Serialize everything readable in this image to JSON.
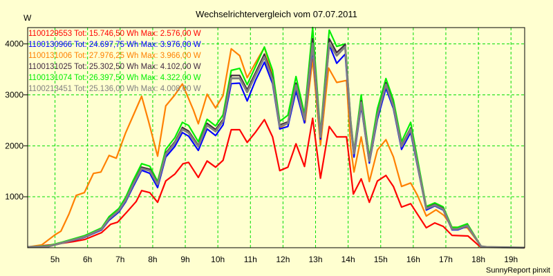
{
  "chart_data": {
    "type": "line",
    "title": "Wechselrichtervergleich vom 07.07.2011",
    "ylabel": "W",
    "xlabel": "",
    "xlim": [
      4.16,
      19.42
    ],
    "ylim": [
      0,
      4320
    ],
    "xticks": [
      5,
      6,
      7,
      8,
      9,
      10,
      11,
      12,
      13,
      14,
      15,
      16,
      17,
      18,
      19
    ],
    "xtick_labels": [
      "5h",
      "6h",
      "7h",
      "8h",
      "9h",
      "10h",
      "11h",
      "12h",
      "13h",
      "14h",
      "15h",
      "16h",
      "17h",
      "18h",
      "19h"
    ],
    "yticks": [
      1000,
      2000,
      3000,
      4000
    ],
    "ytick_labels": [
      "1000",
      "2000",
      "3000",
      "4000"
    ],
    "grid": true,
    "legend_position": "top-left",
    "footer": "SunnyReport pinxit",
    "series": [
      {
        "name": "1100129553",
        "legend": "1100129553 Tot: 15.746,50 Wh Max: 2.576,00 W",
        "color": "#ff0000",
        "x": [
          4.16,
          4.86,
          5.58,
          5.92,
          6.43,
          6.71,
          6.92,
          7.19,
          7.49,
          7.66,
          7.91,
          8.15,
          8.4,
          8.68,
          8.93,
          9.1,
          9.4,
          9.67,
          9.93,
          10.16,
          10.41,
          10.67,
          10.9,
          11.16,
          11.43,
          11.68,
          11.9,
          12.15,
          12.4,
          12.66,
          12.91,
          13.15,
          13.42,
          13.65,
          13.95,
          14.16,
          14.4,
          14.65,
          14.9,
          15.16,
          15.39,
          15.64,
          15.92,
          16.4,
          16.66,
          16.92,
          17.19,
          17.68,
          18.04,
          18.21,
          19.42
        ],
        "values": [
          14,
          54,
          122,
          162,
          297,
          459,
          500,
          689,
          905,
          1121,
          1081,
          891,
          1310,
          1446,
          1648,
          1675,
          1378,
          1702,
          1581,
          1716,
          2316,
          2316,
          2067,
          2270,
          2513,
          2175,
          1513,
          1581,
          2040,
          1594,
          2540,
          1364,
          2378,
          2175,
          2175,
          1054,
          1351,
          891,
          1310,
          1418,
          1202,
          797,
          864,
          392,
          486,
          419,
          243,
          230,
          27,
          14,
          0
        ]
      },
      {
        "name": "1100131006",
        "legend": "1100131006 Tot: 27.976,25 Wh Max: 3.966,00 W",
        "color": "#ff8000",
        "x": [
          4.16,
          4.59,
          5.01,
          5.18,
          5.43,
          5.65,
          5.9,
          6.18,
          6.41,
          6.66,
          6.88,
          7.17,
          7.4,
          7.66,
          7.87,
          8.15,
          8.4,
          8.68,
          8.91,
          9.25,
          9.4,
          9.67,
          9.93,
          10.16,
          10.41,
          10.67,
          10.9,
          11.16,
          11.43,
          11.68,
          11.9,
          12.15,
          12.39,
          12.68,
          12.91,
          13.15,
          13.4,
          13.65,
          13.95,
          14.08,
          14.18,
          14.4,
          14.65,
          14.9,
          15.16,
          15.39,
          15.64,
          15.92,
          16.13,
          16.4,
          16.7,
          16.94,
          17.19,
          17.66,
          18.08,
          18.25,
          19.41
        ],
        "values": [
          14,
          54,
          257,
          324,
          662,
          1027,
          1081,
          1459,
          1486,
          1810,
          1756,
          2256,
          2594,
          2972,
          2486,
          1797,
          2783,
          2999,
          3215,
          2702,
          2432,
          3013,
          2742,
          2986,
          3904,
          3770,
          3337,
          3634,
          3931,
          3391,
          2351,
          2445,
          3121,
          2459,
          3702,
          2013,
          3526,
          3243,
          3283,
          1959,
          1486,
          2175,
          1297,
          1918,
          2121,
          1783,
          1202,
          1270,
          1027,
          622,
          743,
          635,
          405,
          392,
          27,
          14,
          0
        ]
      },
      {
        "name": "1100131074",
        "legend": "1100131074 Tot: 26.397,50 Wh Max: 4.322,00 W",
        "color": "#00ee00",
        "x": [
          4.16,
          4.8,
          5.22,
          5.92,
          6.43,
          6.66,
          6.96,
          7.17,
          7.4,
          7.66,
          7.91,
          8.15,
          8.4,
          8.68,
          8.91,
          9.1,
          9.4,
          9.67,
          9.93,
          10.16,
          10.41,
          10.67,
          10.9,
          11.16,
          11.43,
          11.68,
          11.9,
          12.15,
          12.4,
          12.66,
          12.91,
          13.15,
          13.42,
          13.65,
          13.91,
          14.08,
          14.18,
          14.4,
          14.65,
          14.9,
          15.16,
          15.39,
          15.64,
          15.92,
          16.4,
          16.66,
          16.92,
          17.19,
          17.36,
          17.66,
          18.08,
          18.25,
          19.41
        ],
        "values": [
          14,
          40,
          110,
          240,
          390,
          610,
          770,
          990,
          1320,
          1650,
          1600,
          1300,
          1930,
          2160,
          2460,
          2400,
          2080,
          2520,
          2390,
          2610,
          3480,
          3520,
          3200,
          3560,
          3940,
          3480,
          2480,
          2600,
          3360,
          2620,
          4322,
          2250,
          4270,
          3950,
          4000,
          2500,
          1900,
          3000,
          1780,
          2730,
          3320,
          2900,
          2080,
          2460,
          810,
          880,
          800,
          400,
          400,
          470,
          30,
          14,
          0
        ]
      },
      {
        "name": "1100130966",
        "legend": "1100130966 Tot: 24.697,75 Wh Max: 3.976,00 W",
        "color": "#0000ff",
        "x": [
          4.16,
          4.8,
          5.22,
          5.92,
          6.43,
          6.66,
          6.96,
          7.17,
          7.4,
          7.66,
          7.91,
          8.15,
          8.4,
          8.68,
          8.91,
          9.1,
          9.4,
          9.67,
          9.93,
          10.16,
          10.41,
          10.67,
          10.9,
          11.16,
          11.43,
          11.68,
          11.9,
          12.15,
          12.4,
          12.66,
          12.91,
          13.15,
          13.42,
          13.65,
          13.91,
          14.08,
          14.18,
          14.4,
          14.65,
          14.9,
          15.16,
          15.39,
          15.64,
          15.92,
          16.4,
          16.66,
          16.92,
          17.19,
          17.36,
          17.66,
          18.08,
          18.25,
          19.41
        ],
        "values": [
          14,
          25,
          90,
          205,
          350,
          540,
          700,
          900,
          1200,
          1520,
          1460,
          1180,
          1780,
          1990,
          2260,
          2190,
          1910,
          2330,
          2200,
          2410,
          3220,
          3230,
          2880,
          3290,
          3640,
          3220,
          2330,
          2380,
          3080,
          2450,
          3900,
          2130,
          3976,
          3620,
          3800,
          2380,
          1780,
          2780,
          1660,
          2520,
          3130,
          2730,
          1930,
          2260,
          740,
          820,
          740,
          350,
          350,
          420,
          27,
          14,
          0
        ]
      },
      {
        "name": "1100131025",
        "legend": "1100131025 Tot: 25.302,50 Wh Max: 4.102,00 W",
        "color": "#402840",
        "x": [
          4.16,
          4.8,
          5.22,
          5.92,
          6.43,
          6.66,
          6.96,
          7.17,
          7.4,
          7.66,
          7.91,
          8.15,
          8.4,
          8.68,
          8.91,
          9.1,
          9.4,
          9.67,
          9.93,
          10.16,
          10.41,
          10.67,
          10.9,
          11.16,
          11.43,
          11.68,
          11.9,
          12.15,
          12.4,
          12.66,
          12.91,
          13.15,
          13.42,
          13.65,
          13.91,
          14.08,
          14.18,
          14.4,
          14.65,
          14.9,
          15.16,
          15.39,
          15.64,
          15.92,
          16.4,
          16.66,
          16.92,
          17.19,
          17.36,
          17.66,
          18.08,
          18.25,
          19.41
        ],
        "values": [
          14,
          27,
          95,
          220,
          370,
          575,
          735,
          940,
          1260,
          1580,
          1540,
          1260,
          1860,
          2080,
          2360,
          2290,
          2010,
          2440,
          2320,
          2520,
          3380,
          3380,
          3100,
          3440,
          3800,
          3340,
          2410,
          2470,
          3230,
          2540,
          4102,
          2200,
          4100,
          3830,
          3990,
          2450,
          1870,
          2880,
          1720,
          2620,
          3240,
          2810,
          2010,
          2350,
          780,
          850,
          770,
          370,
          370,
          440,
          27,
          14,
          0
        ]
      },
      {
        "name": "1100213451",
        "legend": "1100213451 Tot: 25.136,00 Wh Max: 4.008,00 W",
        "color": "#808080",
        "x": [
          4.16,
          4.8,
          5.22,
          5.92,
          6.43,
          6.66,
          6.96,
          7.17,
          7.4,
          7.66,
          7.91,
          8.15,
          8.4,
          8.68,
          8.91,
          9.1,
          9.4,
          9.67,
          9.93,
          10.16,
          10.41,
          10.67,
          10.9,
          11.16,
          11.43,
          11.68,
          11.9,
          12.15,
          12.4,
          12.66,
          12.91,
          13.15,
          13.42,
          13.65,
          13.91,
          14.08,
          14.18,
          14.4,
          14.65,
          14.9,
          15.16,
          15.39,
          15.64,
          15.92,
          16.4,
          16.66,
          16.92,
          17.19,
          17.36,
          17.66,
          18.08,
          18.25,
          19.41
        ],
        "values": [
          14,
          27,
          95,
          216,
          365,
          567,
          729,
          932,
          1243,
          1553,
          1513,
          1243,
          1837,
          2053,
          2324,
          2256,
          1986,
          2405,
          2283,
          2486,
          3324,
          3324,
          3053,
          3391,
          3742,
          3296,
          2378,
          2445,
          3188,
          2513,
          4008,
          2175,
          4008,
          3770,
          3945,
          2432,
          1851,
          2851,
          1702,
          2594,
          3202,
          2783,
          1986,
          2324,
          767,
          837,
          756,
          365,
          365,
          432,
          27,
          14,
          0
        ]
      }
    ],
    "legend_order": [
      0,
      3,
      1,
      4,
      2,
      5
    ]
  }
}
